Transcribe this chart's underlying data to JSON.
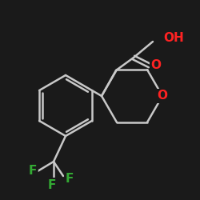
{
  "bg_color": "#1a1a1a",
  "bond_color": "#000000",
  "atom_colors": {
    "O": "#cc0000",
    "F": "#006600",
    "C": "#000000",
    "H": "#000000"
  },
  "font_size_atom": 11,
  "font_size_label": 11,
  "line_width": 1.8
}
